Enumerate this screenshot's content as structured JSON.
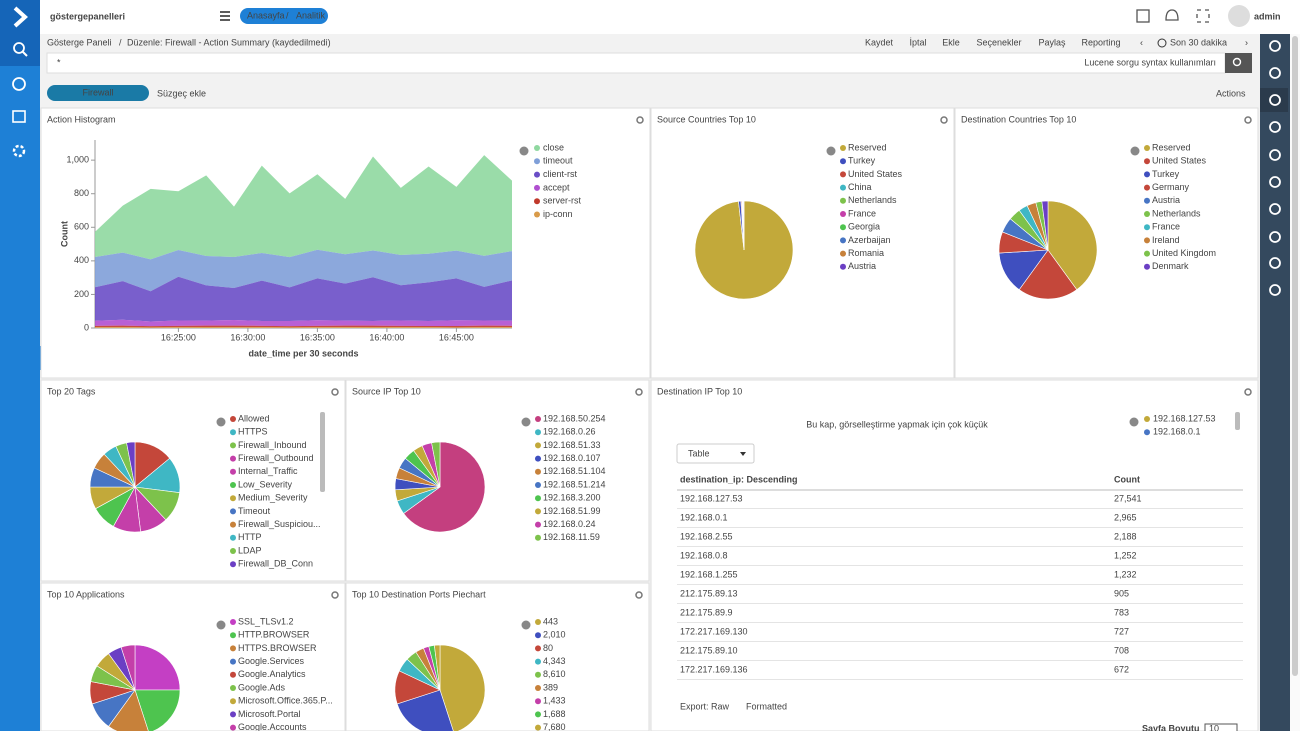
{
  "header": {
    "logo": "göstergepanelleri",
    "crumbs": [
      "Anasayfa",
      "/",
      "Analitik"
    ],
    "user": "admin"
  },
  "toolbar": {
    "breadcrumb": [
      "Gösterge Paneli",
      "/",
      "Düzenle: Firewall - Action Summary (kaydedilmedi)"
    ],
    "actions": [
      "Kaydet",
      "İptal",
      "Ekle",
      "Seçenekler",
      "Paylaş",
      "Reporting"
    ],
    "time": "Son 30 dakika"
  },
  "query": {
    "text": "*",
    "hint": "Lucene sorgu syntax kullanımları"
  },
  "filters": {
    "pill": "Firewall",
    "add": "Süzgeç ekle",
    "actions": "Actions"
  },
  "panels": [
    {
      "title": "Action Histogram",
      "type": "area",
      "ylabel": "Count",
      "xlabel": "date_time per 30 seconds",
      "ylim": [
        0,
        1120
      ],
      "yticks": [
        0,
        200,
        400,
        600,
        800,
        {
          "value": 1000,
          "label": "1,000"
        }
      ],
      "xlim": [
        "16:19:00",
        "16:49:00"
      ],
      "xticks": [
        "16:25:00",
        "16:30:00",
        "16:35:00",
        "16:40:00",
        "16:45:00"
      ],
      "x": [
        "16:19:00",
        "16:21:00",
        "16:23:00",
        "16:25:00",
        "16:27:00",
        "16:29:00",
        "16:31:00",
        "16:33:00",
        "16:35:00",
        "16:37:00",
        "16:39:00",
        "16:41:00",
        "16:43:00",
        "16:45:00",
        "16:47:00",
        "16:49:00"
      ],
      "series": [
        {
          "name": "close",
          "color": "#8fd8a0",
          "values": [
            150,
            280,
            420,
            350,
            480,
            300,
            520,
            380,
            450,
            330,
            560,
            400,
            520,
            380,
            600,
            420
          ]
        },
        {
          "name": "timeout",
          "color": "#7f9fd8",
          "values": [
            180,
            170,
            190,
            160,
            175,
            185,
            165,
            180,
            170,
            175,
            160,
            180,
            170,
            165,
            185,
            175
          ]
        },
        {
          "name": "client-rst",
          "color": "#6a4ec6",
          "values": [
            200,
            230,
            180,
            260,
            210,
            190,
            240,
            200,
            250,
            220,
            260,
            210,
            230,
            250,
            200,
            240
          ]
        },
        {
          "name": "accept",
          "color": "#b04fd0",
          "values": [
            30,
            35,
            28,
            32,
            30,
            34,
            29,
            31,
            33,
            30,
            28,
            32,
            30,
            34,
            31,
            30
          ]
        },
        {
          "name": "server-rst",
          "color": "#c0392b",
          "values": [
            8,
            9,
            7,
            8,
            8,
            9,
            8,
            7,
            8,
            9,
            8,
            8,
            7,
            8,
            9,
            8
          ]
        },
        {
          "name": "ip-conn",
          "color": "#d99b4a",
          "values": [
            5,
            5,
            4,
            5,
            6,
            5,
            5,
            4,
            5,
            5,
            6,
            5,
            5,
            4,
            5,
            5
          ]
        }
      ]
    },
    {
      "title": "Source Countries Top 10",
      "type": "pie",
      "labels": [
        "Reserved",
        "Turkey",
        "United States",
        "China",
        "Netherlands",
        "France",
        "Georgia",
        "Azerbaijan",
        "Romania",
        "Austria"
      ],
      "values": [
        98.2,
        0.8,
        0.3,
        0.2,
        0.1,
        0.1,
        0.1,
        0.1,
        0.05,
        0.05
      ],
      "colors": [
        "#c2a93a",
        "#3f4fbf",
        "#c4473a",
        "#3fb7c4",
        "#7dc24b",
        "#c43fa9",
        "#4ec44f",
        "#4775c4",
        "#c7813a",
        "#6b3fc4"
      ]
    },
    {
      "title": "Destination Countries Top 10",
      "type": "pie",
      "labels": [
        "Reserved",
        "United States",
        "Turkey",
        "Germany",
        "Austria",
        "Netherlands",
        "France",
        "Ireland",
        "United Kingdom",
        "Denmark"
      ],
      "values": [
        40,
        20,
        14,
        7,
        5,
        4,
        3,
        3,
        2,
        2
      ],
      "colors": [
        "#c2a93a",
        "#c4473a",
        "#3f4fbf",
        "#c4473a",
        "#4775c4",
        "#7dc24b",
        "#3fb7c4",
        "#c7813a",
        "#7dc24b",
        "#6b3fc4"
      ]
    },
    {
      "title": "Top 20 Tags",
      "type": "pie",
      "labels": [
        "Allowed",
        "HTTPS",
        "Firewall_Inbound",
        "Firewall_Outbound",
        "Internal_Traffic",
        "Low_Severity",
        "Medium_Severity",
        "Timeout",
        "Firewall_Suspiciou...",
        "HTTP",
        "LDAP",
        "Firewall_DB_Conn"
      ],
      "values": [
        14,
        13,
        11,
        10,
        10,
        9,
        8,
        7,
        6,
        5,
        4,
        3
      ],
      "colors": [
        "#c4473a",
        "#3fb7c4",
        "#7dc24b",
        "#c43fa9",
        "#c43fa9",
        "#4ec44f",
        "#c2a93a",
        "#4775c4",
        "#c7813a",
        "#3fb7c4",
        "#7dc24b",
        "#6b3fc4"
      ]
    },
    {
      "title": "Source IP Top 10",
      "type": "pie",
      "labels": [
        "192.168.50.254",
        "192.168.0.26",
        "192.168.51.33",
        "192.168.0.107",
        "192.168.51.104",
        "192.168.51.214",
        "192.168.3.200",
        "192.168.51.99",
        "192.168.0.24",
        "192.168.11.59"
      ],
      "values": [
        65,
        5,
        4,
        4,
        4,
        4,
        4,
        3.5,
        3.5,
        3
      ],
      "colors": [
        "#c43f7f",
        "#3fb7c4",
        "#c2a93a",
        "#3f4fbf",
        "#c7813a",
        "#4775c4",
        "#4ec44f",
        "#c2a93a",
        "#c43fa9",
        "#7dc24b"
      ]
    },
    {
      "title": "Top 10 Applications",
      "type": "pie",
      "labels": [
        "SSL_TLSv1.2",
        "HTTP.BROWSER",
        "HTTPS.BROWSER",
        "Google.Services",
        "Google.Analytics",
        "Google.Ads",
        "Microsoft.Office.365.P...",
        "Microsoft.Portal",
        "Google.Accounts"
      ],
      "values": [
        25,
        20,
        15,
        10,
        8,
        6,
        6,
        5,
        5
      ],
      "colors": [
        "#c43fc4",
        "#4ec44f",
        "#c7813a",
        "#4775c4",
        "#c4473a",
        "#7dc24b",
        "#c2a93a",
        "#6b3fc4",
        "#c43fa9"
      ]
    },
    {
      "title": "Top 10 Destination Ports Piechart",
      "type": "pie",
      "labels": [
        "443",
        "2,010",
        "80",
        "4,343",
        "8,610",
        "389",
        "1,433",
        "1,688",
        "7,680"
      ],
      "values": [
        45,
        25,
        12,
        5,
        4,
        3,
        2,
        2,
        2
      ],
      "colors": [
        "#c2a93a",
        "#3f4fbf",
        "#c4473a",
        "#3fb7c4",
        "#7dc24b",
        "#c7813a",
        "#c43fa9",
        "#4ec44f",
        "#c2a93a"
      ]
    },
    {
      "title": "Destination IP Top 10",
      "type": "table",
      "message": "Bu kap, görselleştirme yapmak için çok küçük",
      "legend": [
        "192.168.127.53",
        "192.168.0.1"
      ],
      "select": "Table",
      "columns": [
        "destination_ip: Descending",
        "Count"
      ],
      "rows": [
        [
          "192.168.127.53",
          "27,541"
        ],
        [
          "192.168.0.1",
          "2,965"
        ],
        [
          "192.168.2.55",
          "2,188"
        ],
        [
          "192.168.0.8",
          "1,252"
        ],
        [
          "192.168.1.255",
          "1,232"
        ],
        [
          "212.175.89.13",
          "905"
        ],
        [
          "212.175.89.9",
          "783"
        ],
        [
          "172.217.169.130",
          "727"
        ],
        [
          "212.175.89.10",
          "708"
        ],
        [
          "172.217.169.136",
          "672"
        ]
      ],
      "export": "Export:",
      "raw": "Raw",
      "formatted": "Formatted",
      "page_size": "Sayfa Boyutu",
      "page_size_value": "10"
    }
  ]
}
